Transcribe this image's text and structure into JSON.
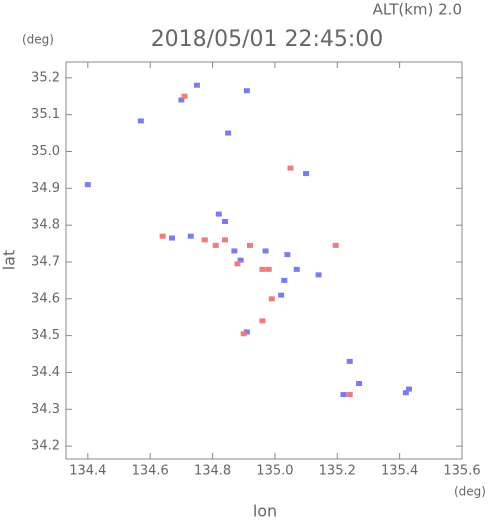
{
  "chart_data": {
    "type": "scatter",
    "title": "2018/05/01 22:45:00",
    "altitude_label": "ALT(km) 2.0",
    "y_unit": "(deg)",
    "x_unit": "(deg)",
    "y_label": "lat",
    "x_label": "lon",
    "xlim": [
      134.33,
      135.6
    ],
    "ylim": [
      34.165,
      35.243
    ],
    "xticks": [
      134.4,
      134.6,
      134.8,
      {
        "value": 135,
        "label": "135.0"
      },
      135.2,
      135.4,
      135.6
    ],
    "yticks": [
      34.2,
      34.3,
      34.4,
      34.5,
      34.6,
      34.7,
      34.8,
      34.9,
      {
        "value": 35,
        "label": "35.0"
      },
      35.1,
      35.2
    ],
    "series": [
      {
        "color": "#7b7bf0",
        "x": [
          134.57,
          134.75,
          134.91,
          134.85,
          134.4,
          135.1,
          134.82,
          134.67,
          134.73,
          134.87,
          134.97,
          135.04,
          135.03,
          135.07,
          135.02,
          134.91,
          135.14,
          135.24,
          135.27,
          135.22,
          135.42,
          135.43,
          134.89,
          134.7,
          134.84
        ],
        "y": [
          35.083,
          35.18,
          35.165,
          35.05,
          34.91,
          34.94,
          34.83,
          34.765,
          34.77,
          34.73,
          34.73,
          34.72,
          34.65,
          34.68,
          34.61,
          34.51,
          34.665,
          34.43,
          34.37,
          34.34,
          34.345,
          34.355,
          34.705,
          35.14,
          34.81
        ]
      },
      {
        "color": "#f07b7b",
        "x": [
          134.71,
          135.05,
          134.64,
          134.775,
          134.84,
          134.92,
          134.98,
          134.99,
          134.96,
          134.9,
          135.195,
          135.24,
          134.96,
          134.81,
          134.88
        ],
        "y": [
          35.15,
          34.955,
          34.77,
          34.76,
          34.76,
          34.745,
          34.68,
          34.6,
          34.54,
          34.505,
          34.745,
          34.34,
          34.68,
          34.745,
          34.695
        ]
      }
    ]
  }
}
